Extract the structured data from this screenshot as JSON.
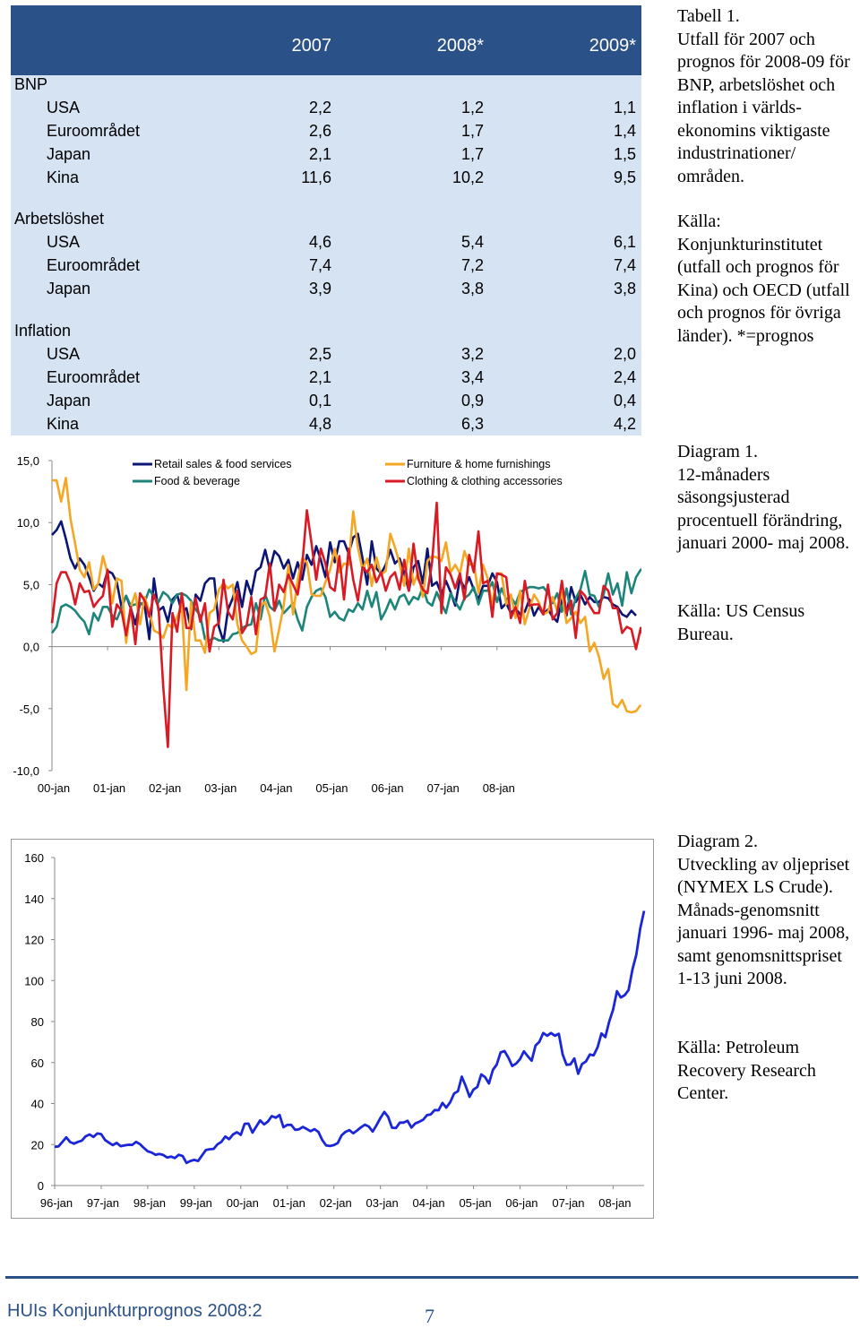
{
  "table": {
    "headers": [
      "2007",
      "2008*",
      "2009*"
    ],
    "sections": [
      {
        "title": "BNP",
        "rows": [
          {
            "label": "USA",
            "values": [
              "2,2",
              "1,2",
              "1,1"
            ]
          },
          {
            "label": "Euroområdet",
            "values": [
              "2,6",
              "1,7",
              "1,4"
            ]
          },
          {
            "label": "Japan",
            "values": [
              "2,1",
              "1,7",
              "1,5"
            ]
          },
          {
            "label": "Kina",
            "values": [
              "11,6",
              "10,2",
              "9,5"
            ]
          }
        ]
      },
      {
        "title": "Arbetslöshet",
        "rows": [
          {
            "label": "USA",
            "values": [
              "4,6",
              "5,4",
              "6,1"
            ]
          },
          {
            "label": "Euroområdet",
            "values": [
              "7,4",
              "7,2",
              "7,4"
            ]
          },
          {
            "label": "Japan",
            "values": [
              "3,9",
              "3,8",
              "3,8"
            ]
          }
        ]
      },
      {
        "title": "Inflation",
        "rows": [
          {
            "label": "USA",
            "values": [
              "2,5",
              "3,2",
              "2,0"
            ]
          },
          {
            "label": "Euroområdet",
            "values": [
              "2,1",
              "3,4",
              "2,4"
            ]
          },
          {
            "label": "Japan",
            "values": [
              "0,1",
              "0,9",
              "0,4"
            ]
          },
          {
            "label": "Kina",
            "values": [
              "4,8",
              "6,3",
              "4,2"
            ]
          }
        ]
      }
    ]
  },
  "captions": {
    "table_caption": "Tabell 1.\nUtfall för 2007 och prognos för 2008-09 för BNP, arbetslöshet och inflation i världs-ekonomins viktigaste industrinationer/ områden.",
    "table_source": "Källa: Konjunkturinstitutet (utfall och prognos för Kina) och OECD (utfall och prognos för övriga länder). *=prognos",
    "diagram1_caption": "Diagram 1.\n12-månaders säsongsjusterad procentuell förändring, januari 2000- maj 2008.",
    "diagram1_source": "Källa: US Census Bureau.",
    "diagram2_caption": "Diagram 2.\nUtveckling av oljepriset (NYMEX LS Crude). Månads-genomsnitt januari 1996- maj 2008, samt genomsnittspriset 1-13 juni 2008.",
    "diagram2_source": "Källa: Petroleum Recovery Research Center."
  },
  "footer": {
    "title": "HUIs Konjunkturprognos 2008:2",
    "page": "7"
  },
  "chart_data": [
    {
      "type": "line",
      "x_tick_labels": [
        "00-jan",
        "01-jan",
        "02-jan",
        "03-jan",
        "04-jan",
        "05-jan",
        "06-jan",
        "07-jan",
        "08-jan"
      ],
      "y_tick_labels": [
        "15,0",
        "10,0",
        "5,0",
        "0,0",
        "-5,0",
        "-10,0"
      ],
      "ylim": [
        -10,
        15
      ],
      "x_start": "2000-01",
      "legend_position": "top",
      "series": [
        {
          "name": "Retail sales & food services",
          "color": "#0b1574",
          "values": [
            9.0,
            9.4,
            10.1,
            8.7,
            7.1,
            6.3,
            7.1,
            6.6,
            5.6,
            4.5,
            5.1,
            4.8,
            6.1,
            5.9,
            5.2,
            3.2,
            4.1,
            3.1,
            1.8,
            3.5,
            3.3,
            0.6,
            5.5,
            2.9,
            3.2,
            2.0,
            3.8,
            4.2,
            2.8,
            3.1,
            1.4,
            4.2,
            3.7,
            5.1,
            5.5,
            5.5,
            1.6,
            0.4,
            3.0,
            3.9,
            5.2,
            3.2,
            5.3,
            4.2,
            6.1,
            6.4,
            7.8,
            6.2,
            7.7,
            7.3,
            6.3,
            7.0,
            5.5,
            6.8,
            5.4,
            7.4,
            6.6,
            8.1,
            7.0,
            5.6,
            8.4,
            6.8,
            8.5,
            8.5,
            7.5,
            8.8,
            9.1,
            7.1,
            5.0,
            8.5,
            6.3,
            5.9,
            6.6,
            7.8,
            6.7,
            7.1,
            5.9,
            4.5,
            6.4,
            6.9,
            5.1,
            7.9,
            4.9,
            5.2,
            4.2,
            5.3,
            4.4,
            3.3,
            5.5,
            4.7,
            5.6,
            4.6,
            3.8,
            4.9,
            4.9,
            5.9,
            5.2,
            3.1,
            3.5,
            2.7,
            3.1,
            2.6,
            2.8,
            3.8,
            2.5,
            3.2,
            2.6,
            3.0,
            2.4,
            2.0,
            3.8,
            2.5,
            4.8,
            3.6,
            4.2,
            3.4,
            4.0,
            3.6,
            3.6,
            4.0,
            3.9,
            3.4,
            3.2,
            2.6,
            2.4,
            2.9,
            2.5
          ]
        },
        {
          "name": "Food & beverage",
          "color": "#1c8479",
          "values": [
            1.1,
            1.6,
            3.2,
            3.4,
            3.2,
            2.9,
            2.4,
            2.0,
            1.0,
            2.7,
            2.1,
            3.2,
            3.2,
            2.5,
            2.2,
            3.1,
            4.1,
            3.3,
            3.4,
            3.4,
            3.6,
            4.6,
            4.0,
            3.6,
            4.4,
            4.1,
            3.5,
            4.2,
            4.3,
            4.1,
            3.7,
            3.0,
            2.5,
            0.6,
            0.5,
            0.7,
            0.5,
            0.5,
            0.5,
            1.0,
            1.1,
            1.5,
            1.7,
            1.8,
            3.5,
            2.2,
            4.2,
            3.2,
            2.9,
            3.7,
            2.7,
            3.1,
            3.5,
            2.2,
            1.3,
            3.2,
            4.0,
            4.5,
            4.7,
            4.0,
            2.4,
            2.8,
            2.3,
            2.1,
            3.0,
            2.8,
            3.5,
            3.0,
            4.5,
            3.2,
            4.4,
            2.2,
            2.9,
            3.8,
            3.0,
            4.0,
            4.2,
            3.4,
            4.0,
            3.8,
            4.8,
            3.6,
            3.3,
            4.4,
            3.5,
            2.7,
            4.3,
            3.6,
            3.0,
            3.9,
            4.2,
            4.8,
            3.4,
            4.5,
            4.5,
            5.2,
            3.6,
            4.7,
            3.8,
            4.0,
            3.4,
            4.4,
            4.6,
            4.8,
            4.8,
            4.7,
            4.8,
            4.3,
            3.5,
            4.3,
            2.8,
            4.7,
            2.6,
            3.9,
            4.6,
            6.1,
            4.2,
            4.1,
            3.2,
            4.2,
            5.9,
            4.2,
            5.1,
            3.3,
            6.0,
            4.3,
            5.6,
            6.2,
            6.3
          ]
        },
        {
          "name": "Furniture & home furnishings",
          "color": "#f5a623",
          "values": [
            13.4,
            13.4,
            11.7,
            13.6,
            10.3,
            8.3,
            6.2,
            5.6,
            6.8,
            4.6,
            5.1,
            7.3,
            5.9,
            3.5,
            5.5,
            5.3,
            0.3,
            3.2,
            4.3,
            1.8,
            4.0,
            2.8,
            1.3,
            1.1,
            0.7,
            1.8,
            1.5,
            2.4,
            3.3,
            -3.5,
            3.6,
            0.5,
            0.5,
            -0.5,
            2.7,
            3.0,
            4.6,
            5.1,
            4.7,
            5.0,
            1.8,
            0.5,
            0.0,
            -0.6,
            -0.4,
            3.3,
            3.6,
            2.4,
            -0.4,
            1.4,
            3.3,
            6.6,
            2.6,
            5.4,
            7.1,
            6.8,
            4.2,
            4.1,
            4.1,
            5.2,
            6.2,
            7.9,
            6.0,
            6.7,
            6.6,
            10.9,
            8.0,
            6.2,
            7.1,
            4.9,
            7.2,
            5.8,
            6.1,
            9.1,
            8.0,
            6.7,
            4.9,
            7.9,
            5.0,
            6.0,
            4.0,
            6.9,
            7.3,
            7.2,
            6.9,
            8.4,
            6.0,
            6.6,
            5.9,
            7.7,
            6.6,
            6.7,
            4.3,
            6.6,
            5.5,
            3.3,
            5.9,
            5.9,
            3.4,
            4.2,
            2.3,
            4.5,
            1.8,
            3.1,
            4.2,
            3.6,
            2.6,
            2.8,
            4.0,
            2.9,
            4.4,
            1.9,
            2.3,
            2.8,
            1.9,
            2.4,
            -0.4,
            0.3,
            -0.8,
            -2.6,
            -1.8,
            -4.6,
            -4.9,
            -4.3,
            -5.2,
            -5.3,
            -5.2,
            -4.7
          ]
        },
        {
          "name": "Clothing & clothing accessories",
          "color": "#d81a25",
          "values": [
            1.9,
            5.1,
            6.0,
            6.0,
            5.1,
            3.4,
            5.1,
            4.4,
            4.5,
            3.2,
            3.7,
            4.1,
            6.2,
            1.6,
            3.4,
            2.9,
            0.9,
            3.2,
            0.2,
            4.3,
            3.7,
            2.4,
            4.2,
            3.1,
            -3.2,
            -8.1,
            2.7,
            1.2,
            4.3,
            1.5,
            1.5,
            3.9,
            2.0,
            3.5,
            -0.4,
            1.6,
            1.9,
            5.4,
            2.8,
            2.2,
            4.5,
            1.1,
            1.7,
            4.0,
            1.0,
            3.8,
            4.0,
            6.7,
            2.9,
            5.0,
            4.4,
            5.8,
            5.0,
            4.2,
            6.6,
            11.0,
            8.3,
            5.4,
            7.9,
            6.7,
            4.8,
            4.5,
            7.3,
            3.8,
            7.9,
            5.4,
            3.7,
            6.4,
            6.0,
            6.6,
            5.2,
            6.0,
            4.5,
            5.6,
            6.0,
            4.6,
            7.0,
            4.5,
            8.3,
            5.5,
            4.6,
            4.3,
            6.8,
            11.6,
            2.7,
            6.4,
            5.8,
            4.7,
            5.9,
            3.8,
            7.4,
            6.0,
            9.3,
            5.1,
            5.3,
            2.4,
            5.9,
            5.8,
            5.6,
            2.3,
            3.2,
            1.9,
            5.3,
            3.3,
            3.4,
            3.4,
            2.6,
            5.0,
            2.2,
            2.7,
            5.3,
            2.7,
            3.7,
            0.7,
            4.5,
            4.1,
            3.3,
            2.7,
            2.7,
            4.9,
            4.5,
            3.1,
            3.1,
            1.1,
            1.6,
            1.4,
            -0.2,
            1.5,
            0.2
          ]
        }
      ]
    },
    {
      "type": "line",
      "x_tick_labels": [
        "96-jan",
        "97-jan",
        "98-jan",
        "99-jan",
        "00-jan",
        "01-jan",
        "02-jan",
        "03-jan",
        "04-jan",
        "05-jan",
        "06-jan",
        "07-jan",
        "08-jan"
      ],
      "y_tick_labels": [
        "160",
        "140",
        "120",
        "100",
        "80",
        "60",
        "40",
        "20",
        "0"
      ],
      "ylim": [
        0,
        160
      ],
      "x_start": "1996-01",
      "series": [
        {
          "color": "#1a26d8",
          "values": [
            18.9,
            19.1,
            21.3,
            23.5,
            21.2,
            20.4,
            21.3,
            21.9,
            24.0,
            24.9,
            23.7,
            25.4,
            25.1,
            22.2,
            20.9,
            19.7,
            20.8,
            19.2,
            19.6,
            19.9,
            19.8,
            21.3,
            20.2,
            18.3,
            16.7,
            16.1,
            15.0,
            15.4,
            14.9,
            13.7,
            14.1,
            13.4,
            15.0,
            14.4,
            11.0,
            12.0,
            12.5,
            12.0,
            14.7,
            17.3,
            17.7,
            17.9,
            20.1,
            21.3,
            23.9,
            22.6,
            24.9,
            26.0,
            24.7,
            30.1,
            30.2,
            25.8,
            28.8,
            31.8,
            29.8,
            31.2,
            33.9,
            33.1,
            34.4,
            28.4,
            29.6,
            29.6,
            27.2,
            27.4,
            28.6,
            27.6,
            26.5,
            27.5,
            26.2,
            22.2,
            19.6,
            19.3,
            19.7,
            20.7,
            24.5,
            26.2,
            27.0,
            25.5,
            26.9,
            28.4,
            29.7,
            28.8,
            26.3,
            29.4,
            32.9,
            35.9,
            33.5,
            28.2,
            28.0,
            30.7,
            30.7,
            31.6,
            28.3,
            30.3,
            31.1,
            32.1,
            34.3,
            34.7,
            36.8,
            36.7,
            40.3,
            38.0,
            40.7,
            44.9,
            46.0,
            53.1,
            48.5,
            43.3,
            46.8,
            48.1,
            54.2,
            52.9,
            49.8,
            56.4,
            59.0,
            64.9,
            65.6,
            62.4,
            58.3,
            59.5,
            61.7,
            65.5,
            63.1,
            60.9,
            68.3,
            70.1,
            74.4,
            73.1,
            74.4,
            73.1,
            74.0,
            63.9,
            58.9,
            59.1,
            62.0,
            54.5,
            59.3,
            60.5,
            63.9,
            63.5,
            67.5,
            74.2,
            72.4,
            79.9,
            85.8,
            94.8,
            91.7,
            92.9,
            95.4,
            105.4,
            112.6,
            125.4,
            134.0
          ]
        }
      ]
    }
  ]
}
